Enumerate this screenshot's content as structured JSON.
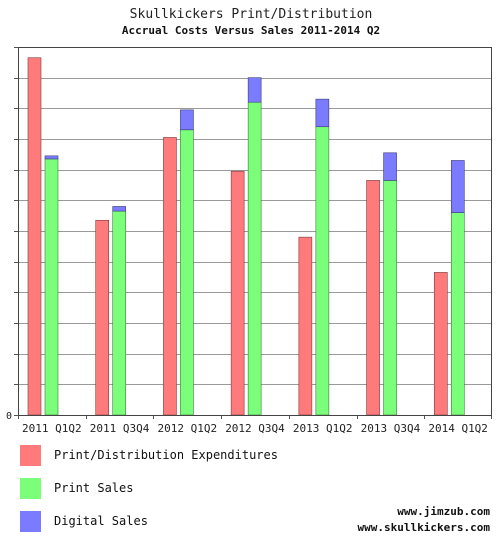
{
  "chart_data": {
    "type": "bar",
    "title": "Skullkickers Print/Distribution",
    "subtitle": "Accrual Costs Versus Sales 2011-2014 Q2",
    "categories": [
      "2011 Q1Q2",
      "2011 Q3Q4",
      "2012 Q1Q2",
      "2012 Q3Q4",
      "2013 Q1Q2",
      "2013 Q3Q4",
      "2014 Q1Q2"
    ],
    "series": [
      {
        "name": "Print/Distribution Expenditures",
        "color": "#ff7b7b",
        "values": [
          11.65,
          6.35,
          9.05,
          7.95,
          5.8,
          7.65,
          4.65
        ]
      },
      {
        "name": "Print Sales",
        "color": "#7bff7b",
        "values": [
          8.35,
          6.65,
          9.3,
          10.2,
          9.4,
          7.65,
          6.6
        ]
      },
      {
        "name": "Digital Sales",
        "color": "#7b7bff",
        "values": [
          0.1,
          0.15,
          0.65,
          0.8,
          0.9,
          0.9,
          1.7
        ]
      }
    ],
    "stacked_series": [
      "Print Sales",
      "Digital Sales"
    ],
    "ylim": [
      0,
      12
    ],
    "ytick_step": 1,
    "ytick_labels_shown": false,
    "grid": true,
    "legend_position": "bottom-left"
  },
  "credits": {
    "line1": "www.jimzub.com",
    "line2": "www.skullkickers.com"
  }
}
